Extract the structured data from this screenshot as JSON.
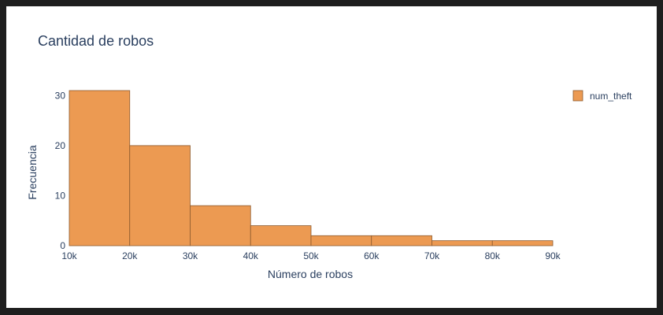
{
  "chart_data": {
    "type": "bar",
    "title": "Cantidad de robos",
    "xlabel": "Número de robos",
    "ylabel": "Frecuencia",
    "legend": [
      "num_theft"
    ],
    "legend_position": "top-right",
    "bin_edges": [
      10000,
      20000,
      30000,
      40000,
      50000,
      60000,
      70000,
      80000,
      90000
    ],
    "x_tick_labels": [
      "10k",
      "20k",
      "30k",
      "40k",
      "50k",
      "60k",
      "70k",
      "80k",
      "90k"
    ],
    "y_tick_labels": [
      "0",
      "10",
      "20",
      "30"
    ],
    "y_ticks": [
      0,
      10,
      20,
      30
    ],
    "series": [
      {
        "name": "num_theft",
        "values": [
          31,
          20,
          8,
          4,
          2,
          2,
          1,
          1
        ]
      }
    ],
    "xlim": [
      10000,
      90000
    ],
    "ylim": [
      0,
      31
    ],
    "grid": false,
    "bar_color": "#ec9a52",
    "bar_edge_color": "#8c5a2e"
  }
}
